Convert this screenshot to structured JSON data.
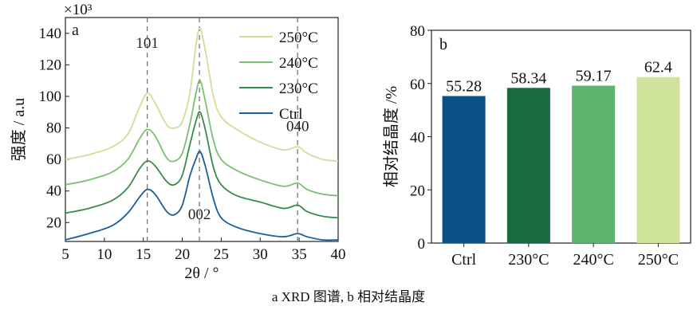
{
  "caption": "a XRD 图谱, b 相对结晶度",
  "colors": {
    "c250": "#c8e29a",
    "c240": "#7bbf73",
    "c230": "#3a8a4a",
    "ctrl": "#1c5e9e",
    "bar_ctrl": "#0a4f86",
    "bar_230": "#196b3f",
    "bar_240": "#5cb56a",
    "bar_250": "#cfe39a"
  },
  "chart_data": [
    {
      "type": "line",
      "panel_label": "a",
      "xlabel": "2θ / °",
      "ylabel": "强度 / a.u",
      "y_multiplier": "×10³",
      "xlim": [
        5,
        40
      ],
      "ylim": [
        8,
        150
      ],
      "xticks": [
        5,
        10,
        15,
        20,
        25,
        30,
        35,
        40
      ],
      "yticks": [
        20,
        40,
        60,
        80,
        100,
        120,
        140
      ],
      "annotations": [
        {
          "text": "101",
          "x": 15.5
        },
        {
          "text": "002",
          "x": 22.2
        },
        {
          "text": "040",
          "x": 34.8
        }
      ],
      "legend_position": "top-right",
      "series": [
        {
          "name": "250°C",
          "x": [
            5,
            8,
            11,
            13,
            14.5,
            15.5,
            16.5,
            18,
            19,
            20,
            21,
            21.8,
            22.3,
            23,
            24,
            25,
            27,
            30,
            33,
            34.8,
            36,
            38,
            40
          ],
          "y": [
            60,
            63,
            68,
            76,
            93,
            102,
            96,
            82,
            80,
            84,
            103,
            134,
            143,
            128,
            100,
            87,
            79,
            71,
            66,
            68,
            64,
            60,
            59
          ]
        },
        {
          "name": "240°C",
          "x": [
            5,
            8,
            11,
            13,
            14.5,
            15.5,
            16.5,
            18,
            19,
            20,
            21,
            21.8,
            22.3,
            23,
            24,
            25,
            27,
            30,
            33,
            34.8,
            36,
            38,
            40
          ],
          "y": [
            44,
            47,
            52,
            60,
            73,
            79,
            75,
            61,
            59,
            64,
            83,
            103,
            110,
            96,
            72,
            60,
            53,
            47,
            43,
            45,
            41,
            38,
            37
          ]
        },
        {
          "name": "230°C",
          "x": [
            5,
            8,
            11,
            13,
            14.5,
            15.5,
            16.5,
            18,
            19,
            20,
            21,
            21.8,
            22.3,
            23,
            24,
            25,
            27,
            30,
            33,
            34.8,
            36,
            38,
            40
          ],
          "y": [
            26,
            29,
            34,
            42,
            54,
            59,
            56,
            46,
            44,
            50,
            70,
            85,
            90,
            78,
            55,
            44,
            37,
            33,
            29,
            31,
            27,
            24,
            23
          ]
        },
        {
          "name": "Ctrl",
          "x": [
            5,
            8,
            11,
            13,
            14.5,
            15.5,
            16.5,
            18,
            19,
            20,
            21,
            21.8,
            22.3,
            23,
            24,
            25,
            27,
            30,
            33,
            34.8,
            36,
            38,
            40
          ],
          "y": [
            9,
            13,
            18,
            26,
            36,
            41,
            38,
            27,
            25,
            31,
            50,
            61,
            65,
            55,
            35,
            23,
            17,
            13,
            11,
            13,
            11,
            9,
            9
          ]
        }
      ]
    },
    {
      "type": "bar",
      "panel_label": "b",
      "ylabel": "相对结晶度 /%",
      "ylim": [
        0,
        80
      ],
      "yticks": [
        0,
        20,
        40,
        60,
        80
      ],
      "categories": [
        "Ctrl",
        "230°C",
        "240°C",
        "250°C"
      ],
      "values": [
        55.28,
        58.34,
        59.17,
        62.4
      ],
      "value_labels": [
        "55.28",
        "58.34",
        "59.17",
        "62.4"
      ]
    }
  ]
}
